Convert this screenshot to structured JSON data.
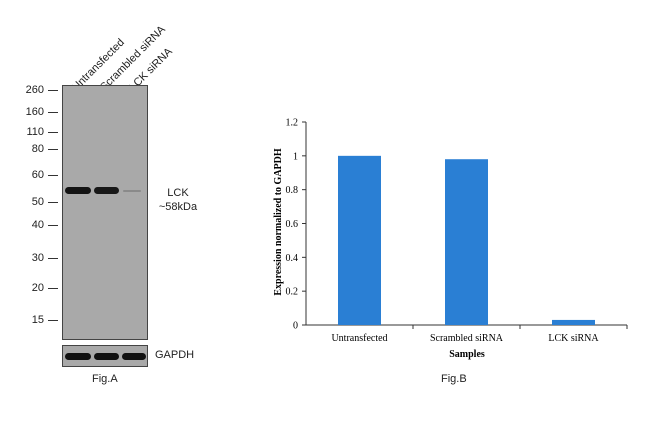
{
  "figA": {
    "lanes": [
      "Untransfected",
      "Scrambled siRNA",
      "LCK siRNA"
    ],
    "mw_markers": [
      "260",
      "160",
      "110",
      "80",
      "60",
      "50",
      "40",
      "30",
      "20",
      "15"
    ],
    "target_label": "LCK",
    "target_size": "~58kDa",
    "loading_control": "GAPDH",
    "caption": "Fig.A"
  },
  "figB": {
    "caption": "Fig.B"
  },
  "chart_data": {
    "type": "bar",
    "categories": [
      "Untransfected",
      "Scrambled siRNA",
      "LCK siRNA"
    ],
    "values": [
      1.0,
      0.98,
      0.03
    ],
    "title": "",
    "xlabel": "Samples",
    "ylabel": "Expression normalized to GAPDH",
    "ylim": [
      0,
      1.2
    ],
    "yticks": [
      "0",
      "0.2",
      "0.4",
      "0.6",
      "0.8",
      "1",
      "1.2"
    ],
    "bar_color": "#2a7fd4",
    "grid": false,
    "legend": "none"
  }
}
